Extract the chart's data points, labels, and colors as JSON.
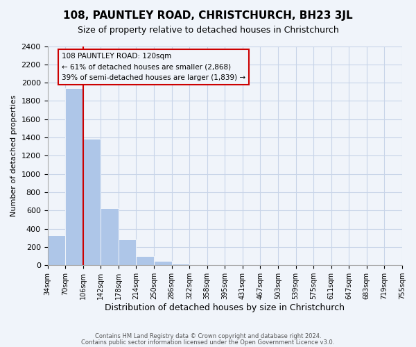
{
  "title": "108, PAUNTLEY ROAD, CHRISTCHURCH, BH23 3JL",
  "subtitle": "Size of property relative to detached houses in Christchurch",
  "xlabel": "Distribution of detached houses by size in Christchurch",
  "ylabel": "Number of detached properties",
  "bin_labels": [
    "34sqm",
    "70sqm",
    "106sqm",
    "142sqm",
    "178sqm",
    "214sqm",
    "250sqm",
    "286sqm",
    "322sqm",
    "358sqm",
    "395sqm",
    "431sqm",
    "467sqm",
    "503sqm",
    "539sqm",
    "575sqm",
    "611sqm",
    "647sqm",
    "683sqm",
    "719sqm",
    "755sqm"
  ],
  "bar_heights": [
    325,
    1940,
    1385,
    625,
    285,
    100,
    45,
    20,
    0,
    0,
    0,
    0,
    0,
    0,
    0,
    0,
    0,
    0,
    0,
    0
  ],
  "bar_color": "#aec6e8",
  "vline_x": 2,
  "vline_color": "#cc0000",
  "ylim": [
    0,
    2400
  ],
  "yticks": [
    0,
    200,
    400,
    600,
    800,
    1000,
    1200,
    1400,
    1600,
    1800,
    2000,
    2200,
    2400
  ],
  "annotation_title": "108 PAUNTLEY ROAD: 120sqm",
  "annotation_line1": "← 61% of detached houses are smaller (2,868)",
  "annotation_line2": "39% of semi-detached houses are larger (1,839) →",
  "footer1": "Contains HM Land Registry data © Crown copyright and database right 2024.",
  "footer2": "Contains public sector information licensed under the Open Government Licence v3.0.",
  "bg_color": "#f0f4fa",
  "grid_color": "#c8d4e8",
  "box_edge_color": "#cc0000"
}
